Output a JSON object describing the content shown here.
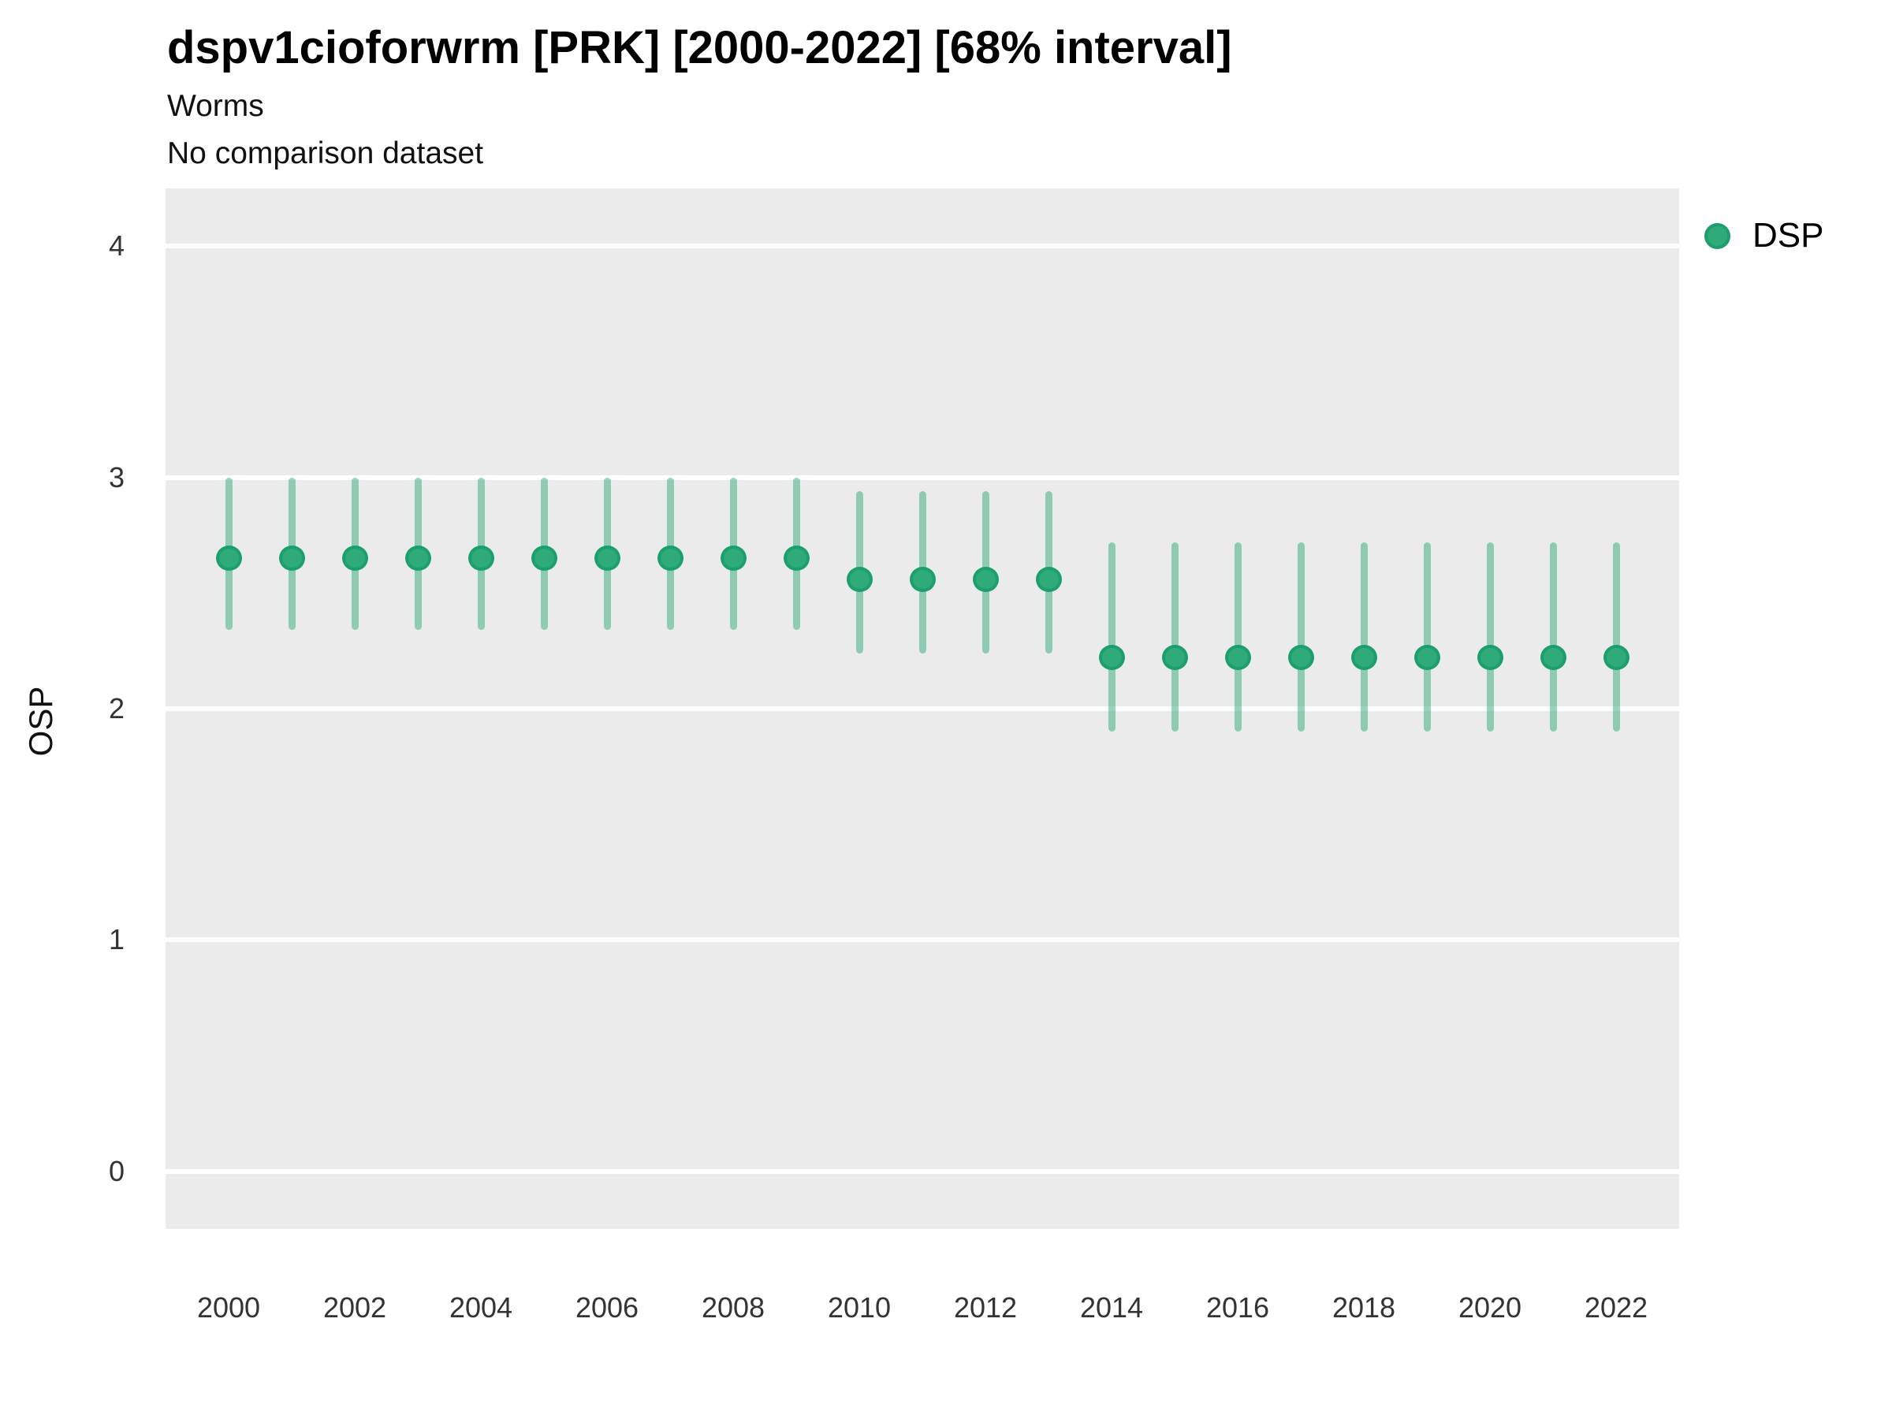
{
  "header": {
    "title": "dspv1cioforwrm [PRK] [2000-2022] [68% interval]",
    "subtitle": "Worms",
    "note": "No comparison dataset"
  },
  "legend": {
    "items": [
      {
        "label": "DSP",
        "fill": "#2FAB7A",
        "stroke": "#1C9F6C"
      }
    ]
  },
  "axes": {
    "y_title": "OSP"
  },
  "chart_data": {
    "type": "pointrange",
    "title": "dspv1cioforwrm [PRK] [2000-2022] [68% interval]",
    "subtitle": "Worms",
    "note": "No comparison dataset",
    "interval_label": "68% interval",
    "xlabel": "",
    "ylabel": "OSP",
    "legend_position": "right",
    "grid": "horizontal major gridlines only, white on gray panel",
    "plot_bg": "#EBEBEB",
    "grid_color": "#FFFFFF",
    "xlim": [
      1999,
      2023
    ],
    "ylim": [
      -0.25,
      4.25
    ],
    "xticks": [
      2000,
      2002,
      2004,
      2006,
      2008,
      2010,
      2012,
      2014,
      2016,
      2018,
      2020,
      2022
    ],
    "yticks": [
      0,
      1,
      2,
      3,
      4
    ],
    "series": [
      {
        "name": "DSP",
        "point_fill": "#2FAB7A",
        "point_stroke": "#1C9F6C",
        "range_color": "rgba(47,171,122,0.5)",
        "x": [
          2000,
          2001,
          2002,
          2003,
          2004,
          2005,
          2006,
          2007,
          2008,
          2009,
          2010,
          2011,
          2012,
          2013,
          2014,
          2015,
          2016,
          2017,
          2018,
          2019,
          2020,
          2021,
          2022
        ],
        "y": [
          2.65,
          2.65,
          2.65,
          2.65,
          2.65,
          2.65,
          2.65,
          2.65,
          2.65,
          2.65,
          2.56,
          2.56,
          2.56,
          2.56,
          2.22,
          2.22,
          2.22,
          2.22,
          2.22,
          2.22,
          2.22,
          2.22,
          2.22
        ],
        "lo": [
          2.34,
          2.34,
          2.34,
          2.34,
          2.34,
          2.34,
          2.34,
          2.34,
          2.34,
          2.34,
          2.24,
          2.24,
          2.24,
          2.24,
          1.9,
          1.9,
          1.9,
          1.9,
          1.9,
          1.9,
          1.9,
          1.9,
          1.9
        ],
        "hi": [
          3.0,
          3.0,
          3.0,
          3.0,
          3.0,
          3.0,
          3.0,
          3.0,
          3.0,
          3.0,
          2.94,
          2.94,
          2.94,
          2.94,
          2.72,
          2.72,
          2.72,
          2.72,
          2.72,
          2.72,
          2.72,
          2.72,
          2.72
        ]
      }
    ]
  }
}
